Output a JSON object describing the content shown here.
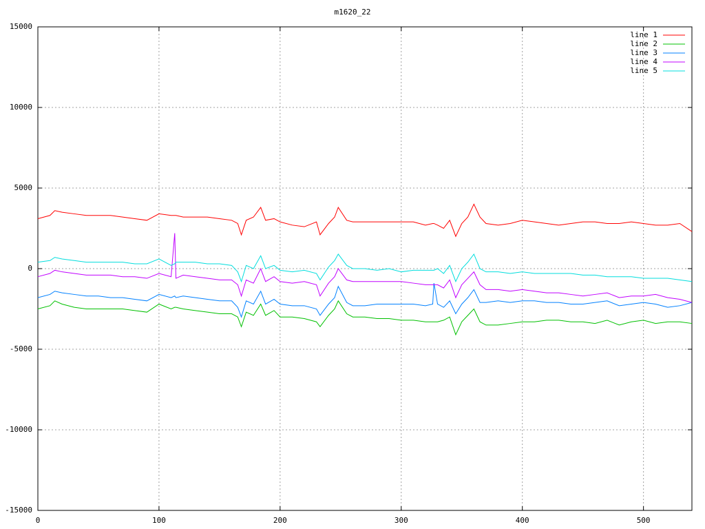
{
  "chart_data": {
    "type": "line",
    "title": "m1620_22",
    "x": [
      0,
      10,
      14,
      20,
      30,
      40,
      50,
      60,
      70,
      80,
      90,
      100,
      110,
      113,
      114,
      120,
      130,
      140,
      150,
      160,
      165,
      168,
      172,
      178,
      184,
      188,
      195,
      200,
      210,
      220,
      230,
      233,
      240,
      245,
      248,
      255,
      260,
      270,
      280,
      290,
      300,
      310,
      320,
      326,
      327,
      330,
      335,
      340,
      345,
      350,
      355,
      360,
      365,
      370,
      380,
      390,
      400,
      410,
      420,
      430,
      440,
      450,
      460,
      470,
      480,
      490,
      500,
      510,
      520,
      530,
      540
    ],
    "series": [
      {
        "name": "line 1",
        "color": "#ff0000",
        "values": [
          3100,
          3300,
          3600,
          3500,
          3400,
          3300,
          3300,
          3300,
          3200,
          3100,
          3000,
          3400,
          3300,
          3300,
          3300,
          3200,
          3200,
          3200,
          3100,
          3000,
          2800,
          2100,
          3000,
          3200,
          3800,
          3000,
          3100,
          2900,
          2700,
          2600,
          2900,
          2100,
          2800,
          3200,
          3800,
          3000,
          2900,
          2900,
          2900,
          2900,
          2900,
          2900,
          2700,
          2800,
          2800,
          2700,
          2500,
          3000,
          2000,
          2800,
          3200,
          4000,
          3200,
          2800,
          2700,
          2800,
          3000,
          2900,
          2800,
          2700,
          2800,
          2900,
          2900,
          2800,
          2800,
          2900,
          2800,
          2700,
          2700,
          2800,
          2300
        ]
      },
      {
        "name": "line 2",
        "color": "#00c000",
        "values": [
          -2500,
          -2300,
          -2000,
          -2200,
          -2400,
          -2500,
          -2500,
          -2500,
          -2500,
          -2600,
          -2700,
          -2200,
          -2500,
          -2400,
          -2400,
          -2500,
          -2600,
          -2700,
          -2800,
          -2800,
          -3000,
          -3600,
          -2700,
          -2900,
          -2200,
          -2900,
          -2600,
          -3000,
          -3000,
          -3100,
          -3300,
          -3600,
          -2900,
          -2500,
          -2000,
          -2800,
          -3000,
          -3000,
          -3100,
          -3100,
          -3200,
          -3200,
          -3300,
          -3300,
          -3300,
          -3300,
          -3200,
          -3000,
          -4100,
          -3300,
          -2900,
          -2500,
          -3300,
          -3500,
          -3500,
          -3400,
          -3300,
          -3300,
          -3200,
          -3200,
          -3300,
          -3300,
          -3400,
          -3200,
          -3500,
          -3300,
          -3200,
          -3400,
          -3300,
          -3300,
          -3400
        ]
      },
      {
        "name": "line 3",
        "color": "#0080ff",
        "values": [
          -1800,
          -1600,
          -1400,
          -1500,
          -1600,
          -1700,
          -1700,
          -1800,
          -1800,
          -1900,
          -2000,
          -1600,
          -1800,
          -1700,
          -1800,
          -1700,
          -1800,
          -1900,
          -2000,
          -2000,
          -2400,
          -3000,
          -2000,
          -2200,
          -1400,
          -2200,
          -1900,
          -2200,
          -2300,
          -2300,
          -2500,
          -2900,
          -2200,
          -1800,
          -1100,
          -2100,
          -2300,
          -2300,
          -2200,
          -2200,
          -2200,
          -2200,
          -2300,
          -2200,
          -900,
          -2200,
          -2400,
          -2000,
          -2800,
          -2200,
          -1800,
          -1300,
          -2100,
          -2100,
          -2000,
          -2100,
          -2000,
          -2000,
          -2100,
          -2100,
          -2200,
          -2200,
          -2100,
          -2000,
          -2300,
          -2200,
          -2100,
          -2200,
          -2400,
          -2300,
          -2100
        ]
      },
      {
        "name": "line 4",
        "color": "#c000ff",
        "values": [
          -500,
          -300,
          -100,
          -200,
          -300,
          -400,
          -400,
          -400,
          -500,
          -500,
          -600,
          -300,
          -500,
          2200,
          -600,
          -400,
          -500,
          -600,
          -700,
          -700,
          -1000,
          -1700,
          -700,
          -900,
          0,
          -800,
          -500,
          -800,
          -900,
          -800,
          -1000,
          -1700,
          -900,
          -500,
          0,
          -700,
          -800,
          -800,
          -800,
          -800,
          -800,
          -900,
          -1000,
          -1000,
          -1000,
          -1000,
          -1200,
          -700,
          -1800,
          -1000,
          -600,
          -200,
          -1000,
          -1300,
          -1300,
          -1400,
          -1300,
          -1400,
          -1500,
          -1500,
          -1600,
          -1700,
          -1600,
          -1500,
          -1800,
          -1700,
          -1700,
          -1600,
          -1800,
          -1900,
          -2100
        ]
      },
      {
        "name": "line 5",
        "color": "#00dddd",
        "values": [
          400,
          500,
          700,
          600,
          500,
          400,
          400,
          400,
          400,
          300,
          300,
          600,
          200,
          300,
          400,
          400,
          400,
          300,
          300,
          200,
          -200,
          -800,
          200,
          0,
          800,
          0,
          200,
          -100,
          -200,
          -100,
          -300,
          -700,
          100,
          500,
          900,
          200,
          0,
          0,
          -100,
          0,
          -200,
          -100,
          -100,
          -100,
          -100,
          0,
          -300,
          200,
          -800,
          0,
          400,
          900,
          0,
          -200,
          -200,
          -300,
          -200,
          -300,
          -300,
          -300,
          -300,
          -400,
          -400,
          -500,
          -500,
          -500,
          -600,
          -600,
          -600,
          -700,
          -800
        ]
      }
    ],
    "xlim": [
      0,
      540
    ],
    "ylim": [
      -15000,
      15000
    ],
    "xticks": [
      0,
      100,
      200,
      300,
      400,
      500
    ],
    "yticks": [
      -15000,
      -10000,
      -5000,
      0,
      5000,
      10000,
      15000
    ],
    "grid": true,
    "legend": "top-right"
  }
}
